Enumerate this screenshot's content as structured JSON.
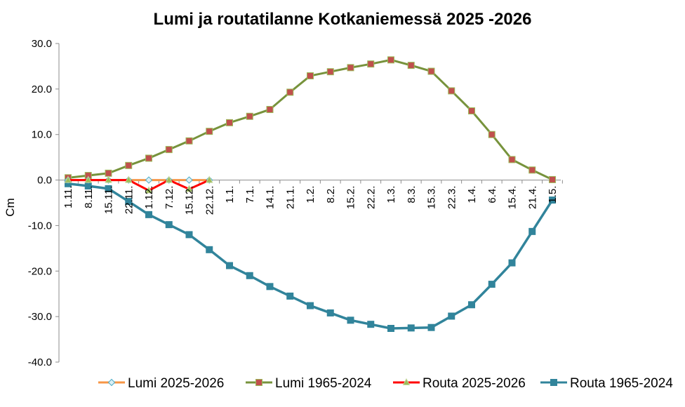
{
  "chart_data": {
    "type": "line",
    "title": "Lumi ja routatilanne Kotkaniemessä 2025  -2026",
    "xlabel": "",
    "ylabel": "Cm",
    "ylim": [
      -40,
      30
    ],
    "yticks": [
      "30.0",
      "20.0",
      "10.0",
      "0.0",
      "-10.0",
      "-20.0",
      "-30.0",
      "-40.0"
    ],
    "ytick_values": [
      30,
      20,
      10,
      0,
      -10,
      -20,
      -30,
      -40
    ],
    "grid": "none",
    "legend_position": "bottom",
    "categories": [
      "1.11.",
      "8.11.",
      "15.11.",
      "22.11.",
      "1.12.",
      "7.12.",
      "15.12.",
      "22.12.",
      "1.1.",
      "7.1.",
      "14.1.",
      "21.1.",
      "1.2.",
      "8.2.",
      "15.2.",
      "22.2.",
      "1.3.",
      "8.3.",
      "15.3.",
      "22.3.",
      "1.4.",
      "6.4.",
      "15.4.",
      "21.4.",
      "1.5."
    ],
    "series": [
      {
        "name": "Lumi 2025-2026",
        "color": "#f79646",
        "marker": "diamond",
        "marker_fill": "#dbeef4",
        "marker_stroke": "#4bacc6",
        "values": [
          0,
          0,
          0,
          0,
          0,
          0,
          0,
          0,
          null,
          null,
          null,
          null,
          null,
          null,
          null,
          null,
          null,
          null,
          null,
          null,
          null,
          null,
          null,
          null,
          null
        ]
      },
      {
        "name": "Lumi 1965-2024",
        "color": "#77933c",
        "marker": "square",
        "marker_fill": "#c0504d",
        "marker_stroke": "#9bbb59",
        "values": [
          0.5,
          1.0,
          1.5,
          3.2,
          4.8,
          6.7,
          8.6,
          10.7,
          12.6,
          14.0,
          15.5,
          19.3,
          22.9,
          23.8,
          24.7,
          25.5,
          26.4,
          25.2,
          23.9,
          19.6,
          15.2,
          10.0,
          4.5,
          2.2,
          0.1
        ]
      },
      {
        "name": "Routa 2025-2026",
        "color": "#ff0000",
        "marker": "triangle",
        "marker_fill": "#9bbb59",
        "marker_stroke": "#c3d69b",
        "values": [
          0,
          0,
          0,
          0,
          -2.3,
          0,
          -2.0,
          0,
          null,
          null,
          null,
          null,
          null,
          null,
          null,
          null,
          null,
          null,
          null,
          null,
          null,
          null,
          null,
          null,
          null
        ]
      },
      {
        "name": "Routa 1965-2024",
        "color": "#31849b",
        "marker": "square",
        "marker_fill": "#31849b",
        "marker_stroke": "#31849b",
        "values": [
          -0.8,
          -1.3,
          -1.9,
          -4.7,
          -7.6,
          -9.8,
          -12.0,
          -15.3,
          -18.8,
          -21.0,
          -23.4,
          -25.5,
          -27.6,
          -29.2,
          -30.8,
          -31.7,
          -32.6,
          -32.5,
          -32.4,
          -29.9,
          -27.4,
          -22.9,
          -18.2,
          -11.3,
          -4.4
        ]
      }
    ]
  }
}
